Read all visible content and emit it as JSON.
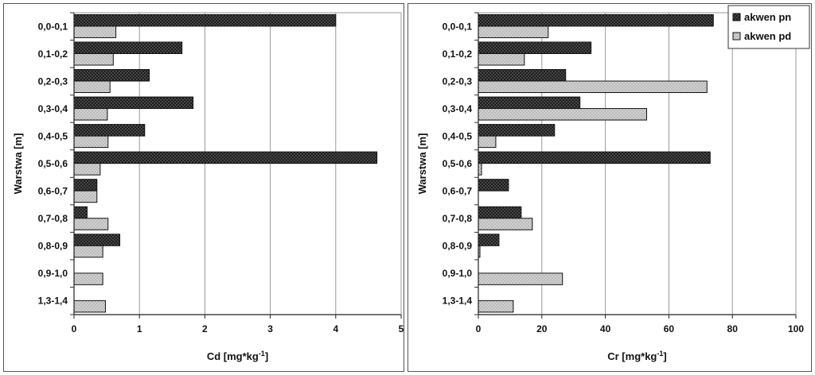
{
  "chart_data": [
    {
      "type": "bar",
      "orientation": "horizontal",
      "categories": [
        "0,0-0,1",
        "0,1-0,2",
        "0,2-0,3",
        "0,3-0,4",
        "0,4-0,5",
        "0,5-0,6",
        "0,6-0,7",
        "0,7-0,8",
        "0,8-0,9",
        "0,9-1,0",
        "1,3-1,4"
      ],
      "series": [
        {
          "values": [
            4.0,
            1.65,
            1.15,
            1.82,
            1.08,
            4.63,
            0.35,
            0.2,
            0.7,
            null,
            null
          ],
          "color": "#1a1a1a"
        },
        {
          "values": [
            0.64,
            0.6,
            0.55,
            0.51,
            0.52,
            0.4,
            0.35,
            0.52,
            0.44,
            0.44,
            0.48
          ],
          "color": "#c8c8c8"
        }
      ],
      "xlabel": "Cd [mg*kg",
      "xlabel_sup": "-1",
      "xlabel_end": "]",
      "ylabel": "Warstwa [m]",
      "xlim": [
        0,
        5
      ],
      "xticks": [
        0,
        1,
        2,
        3,
        4,
        5
      ],
      "grid": "vertical"
    },
    {
      "type": "bar",
      "orientation": "horizontal",
      "categories": [
        "0,0-0,1",
        "0,1-0,2",
        "0,2-0,3",
        "0,3-0,4",
        "0,4-0,5",
        "0,5-0,6",
        "0,6-0,7",
        "0,7-0,8",
        "0,8-0,9",
        "0,9-1,0",
        "1,3-1,4"
      ],
      "series": [
        {
          "name": "akwen pn",
          "values": [
            74,
            35.5,
            27.5,
            32,
            24,
            73,
            9.5,
            13.5,
            6.5,
            null,
            null
          ],
          "color": "#1a1a1a"
        },
        {
          "name": "akwen pd",
          "values": [
            22,
            14.5,
            72,
            53,
            5.5,
            1,
            null,
            17,
            0.5,
            26.5,
            11
          ],
          "color": "#c8c8c8"
        }
      ],
      "xlabel": "Cr [mg*kg",
      "xlabel_sup": "-1",
      "xlabel_end": "]",
      "ylabel": "Warstwa [m]",
      "xlim": [
        0,
        100
      ],
      "xticks": [
        0,
        20,
        40,
        60,
        80,
        100
      ],
      "grid": "vertical",
      "legend_position": "top-right"
    }
  ]
}
